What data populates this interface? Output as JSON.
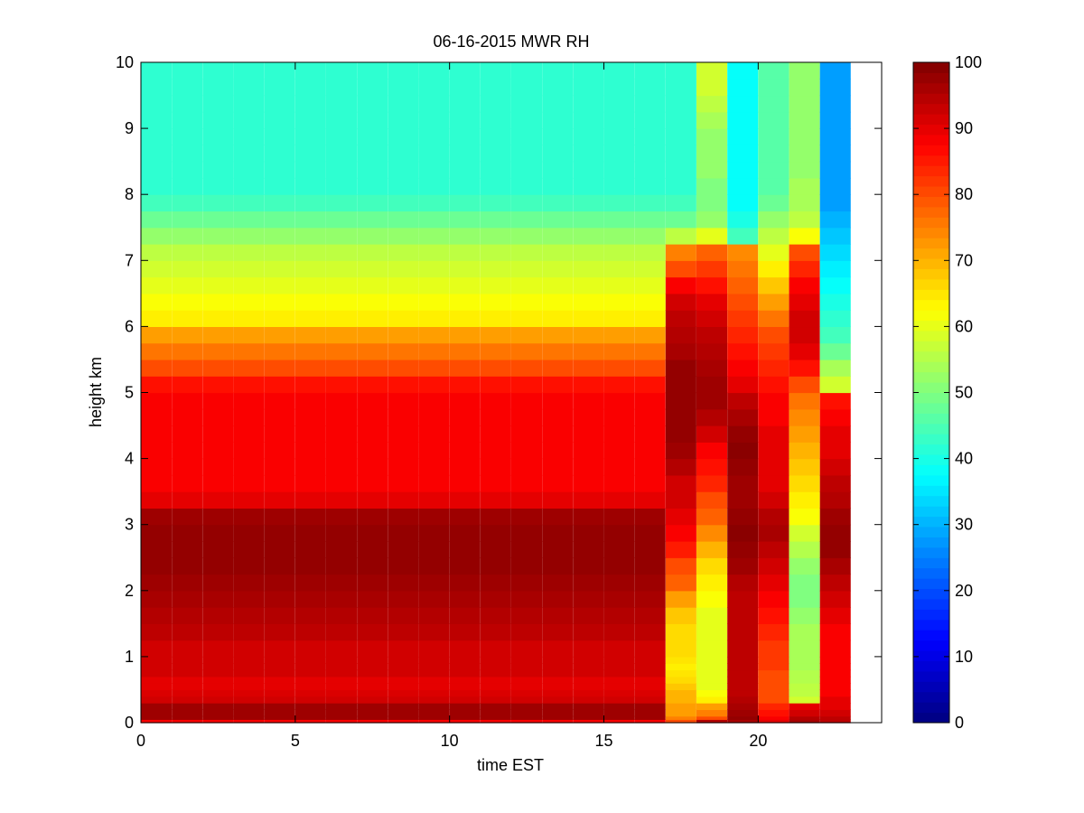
{
  "chart_data": {
    "type": "heatmap",
    "title": "06-16-2015 MWR RH",
    "xlabel": "time EST",
    "ylabel": "height km",
    "xlim": [
      0,
      24
    ],
    "ylim": [
      0,
      10
    ],
    "xticks": [
      0,
      5,
      10,
      15,
      20
    ],
    "yticks": [
      0,
      1,
      2,
      3,
      4,
      5,
      6,
      7,
      8,
      9,
      10
    ],
    "colorbar": {
      "range": [
        0,
        100
      ],
      "ticks": [
        0,
        10,
        20,
        30,
        40,
        50,
        60,
        70,
        80,
        90,
        100
      ],
      "colormap": "jet"
    },
    "grid": false,
    "time_columns": [
      0,
      1,
      2,
      3,
      4,
      5,
      6,
      7,
      8,
      9,
      10,
      11,
      12,
      13,
      14,
      15,
      16,
      17,
      18,
      19,
      20,
      21,
      22,
      23
    ],
    "height_levels": [
      0,
      0.05,
      0.1,
      0.2,
      0.3,
      0.4,
      0.5,
      0.6,
      0.7,
      0.8,
      0.9,
      1.0,
      1.25,
      1.5,
      1.75,
      2.0,
      2.25,
      2.5,
      2.75,
      3.0,
      3.25,
      3.5,
      3.75,
      4.0,
      4.25,
      4.5,
      4.75,
      5.0,
      5.25,
      5.5,
      5.75,
      6.0,
      6.25,
      6.5,
      6.75,
      7.0,
      7.25,
      7.5,
      7.75,
      8.0,
      8.25,
      8.5,
      8.75,
      9.0,
      9.25,
      9.5,
      9.75
    ],
    "rh_profile_groups": [
      {
        "name": "day",
        "columns": [
          0,
          1,
          2,
          3,
          4,
          5,
          6,
          7,
          8,
          9,
          10,
          11,
          12,
          13,
          14,
          15,
          16
        ],
        "profile": [
          88,
          97,
          97,
          97,
          92,
          91,
          90,
          90,
          92,
          92,
          92,
          92,
          94,
          95,
          96,
          97,
          98,
          98,
          98,
          97,
          90,
          88,
          88,
          88,
          88,
          88,
          88,
          86,
          80,
          76,
          72,
          64,
          62,
          60,
          58,
          56,
          52,
          48,
          44,
          42,
          42,
          42,
          42,
          42,
          42,
          42,
          42
        ]
      },
      {
        "name": "col17",
        "columns": [
          17
        ],
        "profile": [
          80,
          75,
          72,
          72,
          70,
          70,
          68,
          66,
          65,
          64,
          65,
          66,
          66,
          68,
          72,
          78,
          80,
          85,
          88,
          90,
          92,
          92,
          95,
          97,
          98,
          98,
          98,
          98,
          98,
          96,
          95,
          94,
          92,
          88,
          80,
          75,
          56,
          48,
          44,
          42,
          42,
          42,
          42,
          42,
          42,
          42,
          42
        ]
      },
      {
        "name": "col18",
        "columns": [
          18
        ],
        "profile": [
          95,
          80,
          75,
          72,
          64,
          62,
          60,
          60,
          60,
          60,
          60,
          60,
          60,
          60,
          62,
          64,
          66,
          70,
          74,
          78,
          80,
          84,
          86,
          88,
          92,
          95,
          97,
          97,
          96,
          95,
          94,
          92,
          90,
          86,
          82,
          78,
          60,
          52,
          50,
          50,
          52,
          52,
          52,
          54,
          56,
          58,
          58
        ]
      },
      {
        "name": "col19",
        "columns": [
          19
        ],
        "profile": [
          96,
          98,
          97,
          96,
          95,
          94,
          94,
          94,
          94,
          94,
          94,
          94,
          94,
          94,
          94,
          95,
          97,
          98,
          99,
          98,
          97,
          97,
          98,
          99,
          98,
          96,
          94,
          90,
          88,
          86,
          84,
          82,
          80,
          78,
          76,
          74,
          44,
          40,
          38,
          38,
          38,
          38,
          38,
          38,
          38,
          38,
          38
        ]
      },
      {
        "name": "col20",
        "columns": [
          20
        ],
        "profile": [
          90,
          88,
          86,
          84,
          80,
          80,
          80,
          80,
          80,
          82,
          82,
          82,
          84,
          86,
          88,
          90,
          92,
          94,
          96,
          95,
          92,
          90,
          90,
          90,
          90,
          88,
          88,
          86,
          84,
          82,
          80,
          76,
          72,
          68,
          64,
          60,
          56,
          52,
          48,
          46,
          46,
          46,
          46,
          46,
          46,
          46,
          46
        ]
      },
      {
        "name": "col21",
        "columns": [
          21
        ],
        "profile": [
          96,
          95,
          92,
          90,
          58,
          56,
          56,
          55,
          55,
          54,
          54,
          54,
          54,
          52,
          50,
          50,
          52,
          55,
          58,
          62,
          64,
          66,
          68,
          70,
          72,
          74,
          76,
          80,
          86,
          90,
          92,
          92,
          90,
          88,
          84,
          80,
          62,
          56,
          54,
          54,
          52,
          52,
          52,
          52,
          52,
          52,
          52
        ]
      },
      {
        "name": "col22",
        "columns": [
          22
        ],
        "profile": [
          94,
          94,
          92,
          90,
          90,
          88,
          88,
          88,
          88,
          88,
          88,
          88,
          88,
          90,
          92,
          94,
          96,
          98,
          98,
          97,
          95,
          94,
          92,
          90,
          90,
          88,
          86,
          58,
          54,
          48,
          44,
          42,
          40,
          38,
          36,
          34,
          32,
          30,
          28,
          28,
          28,
          28,
          28,
          28,
          28,
          28,
          28
        ]
      }
    ]
  }
}
